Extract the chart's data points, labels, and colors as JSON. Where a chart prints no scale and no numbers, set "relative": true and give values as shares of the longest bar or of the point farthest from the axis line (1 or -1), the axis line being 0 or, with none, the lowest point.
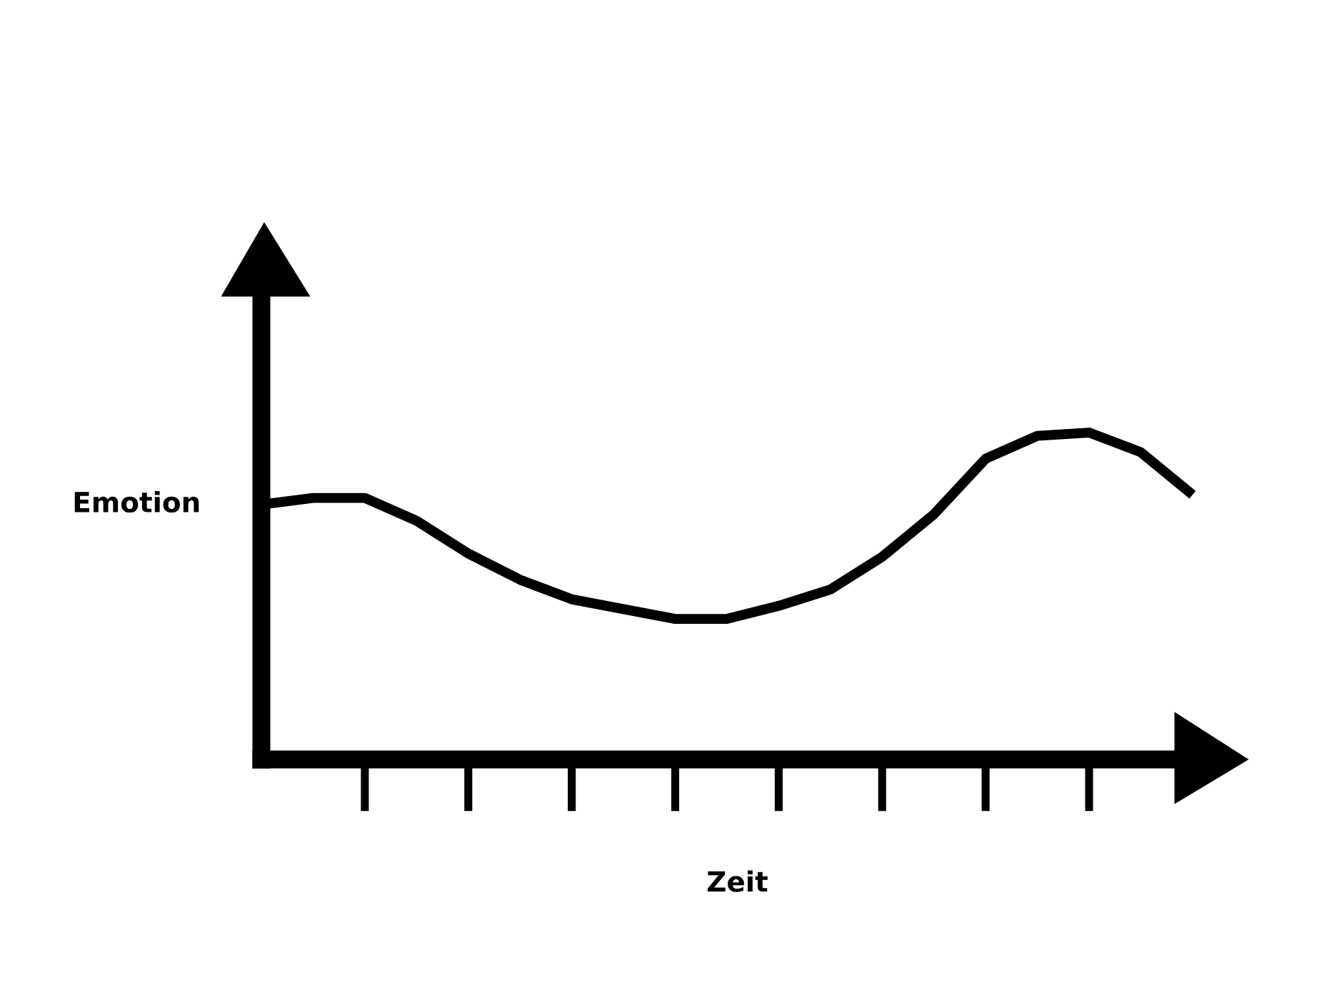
{
  "chart_data": {
    "type": "line",
    "xlabel": "Zeit",
    "ylabel": "Emotion",
    "relative": true,
    "categories": [
      null,
      null,
      null,
      null,
      null,
      null,
      null,
      null,
      null,
      null,
      null,
      null,
      null,
      null,
      null,
      null,
      null,
      null,
      null
    ],
    "series": [
      {
        "color": "#000000",
        "values": [
          0.78,
          0.8,
          0.8,
          0.73,
          0.63,
          0.55,
          0.49,
          0.46,
          0.43,
          0.43,
          0.47,
          0.52,
          0.62,
          0.75,
          0.92,
          0.99,
          1.0,
          0.94,
          0.81
        ]
      }
    ],
    "line_style": "solid"
  }
}
